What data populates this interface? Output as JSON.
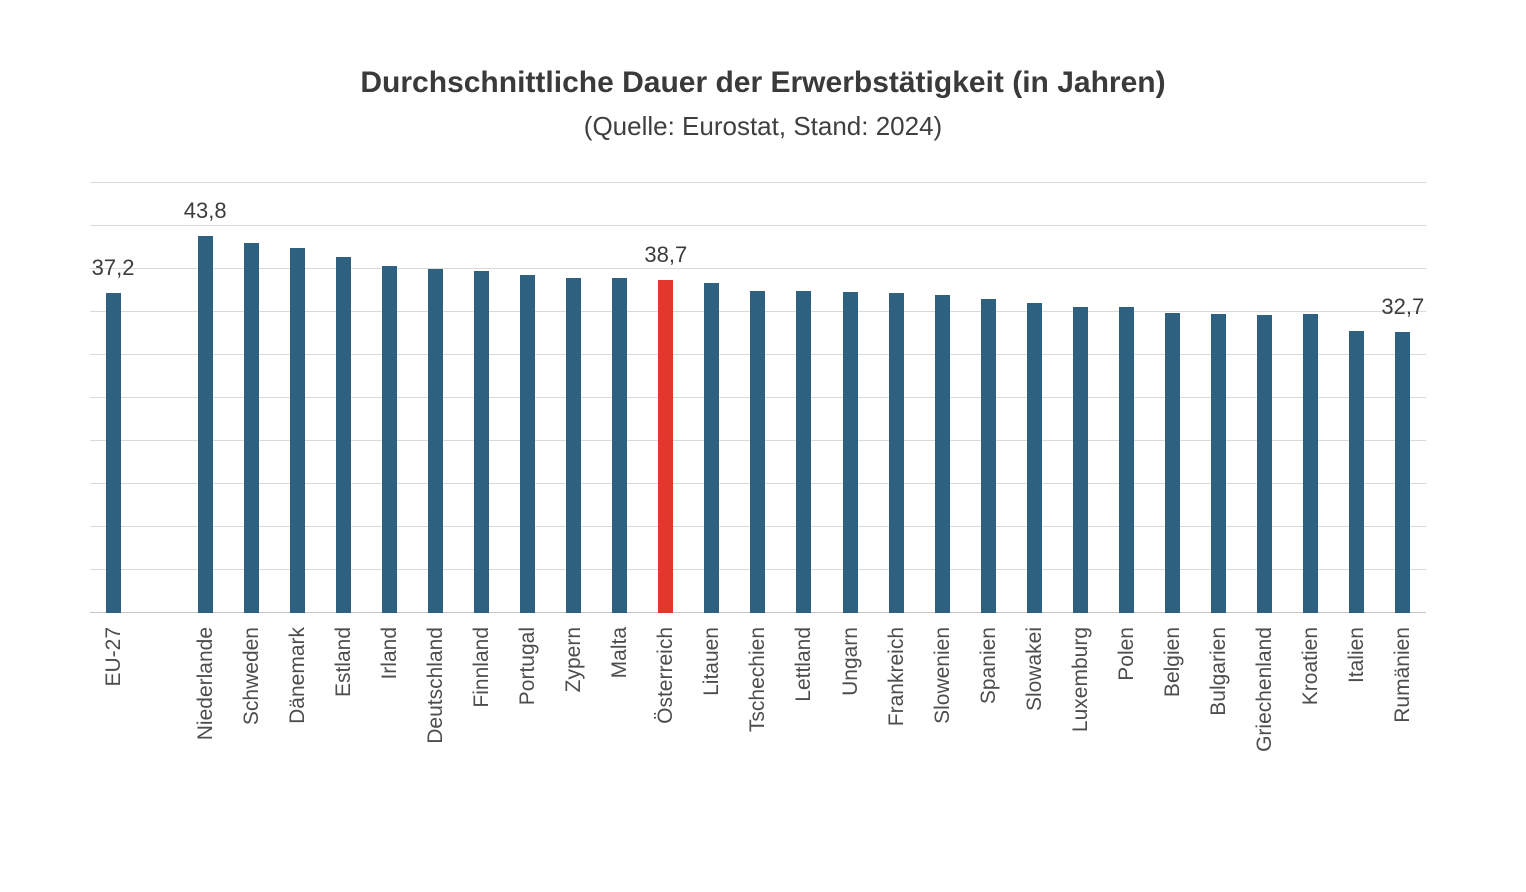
{
  "chart_data": {
    "type": "bar",
    "title": "Durchschnittliche Dauer der Erwerbstätigkeit (in Jahren)",
    "subtitle": "(Quelle: Eurostat, Stand: 2024)",
    "xlabel": "",
    "ylabel": "",
    "ylim": [
      0,
      50
    ],
    "gridline_step": 5,
    "grid": true,
    "legend": "none",
    "y_axis_labels_visible": false,
    "bar_color": "#2E617F",
    "highlight_color": "#E0392B",
    "highlight_category": "Österreich",
    "gap_after_index": 0,
    "points": [
      {
        "category": "EU-27",
        "value": 37.2,
        "data_label": "37,2"
      },
      {
        "category": "Niederlande",
        "value": 43.8,
        "data_label": "43,8"
      },
      {
        "category": "Schweden",
        "value": 43.0
      },
      {
        "category": "Dänemark",
        "value": 42.5
      },
      {
        "category": "Estland",
        "value": 41.4
      },
      {
        "category": "Irland",
        "value": 40.4
      },
      {
        "category": "Deutschland",
        "value": 40.0
      },
      {
        "category": "Finnland",
        "value": 39.8
      },
      {
        "category": "Portugal",
        "value": 39.3
      },
      {
        "category": "Zypern",
        "value": 39.0
      },
      {
        "category": "Malta",
        "value": 39.0
      },
      {
        "category": "Österreich",
        "value": 38.7,
        "data_label": "38,7",
        "highlight": true
      },
      {
        "category": "Litauen",
        "value": 38.4
      },
      {
        "category": "Tschechien",
        "value": 37.5
      },
      {
        "category": "Lettland",
        "value": 37.4
      },
      {
        "category": "Ungarn",
        "value": 37.3
      },
      {
        "category": "Frankreich",
        "value": 37.2
      },
      {
        "category": "Slowenien",
        "value": 37.0
      },
      {
        "category": "Spanien",
        "value": 36.5
      },
      {
        "category": "Slowakei",
        "value": 36.0
      },
      {
        "category": "Luxemburg",
        "value": 35.6
      },
      {
        "category": "Polen",
        "value": 35.6
      },
      {
        "category": "Belgien",
        "value": 34.9
      },
      {
        "category": "Bulgarien",
        "value": 34.8
      },
      {
        "category": "Griechenland",
        "value": 34.7
      },
      {
        "category": "Kroatien",
        "value": 34.8
      },
      {
        "category": "Italien",
        "value": 32.8
      },
      {
        "category": "Rumänien",
        "value": 32.7,
        "data_label": "32,7"
      }
    ]
  }
}
